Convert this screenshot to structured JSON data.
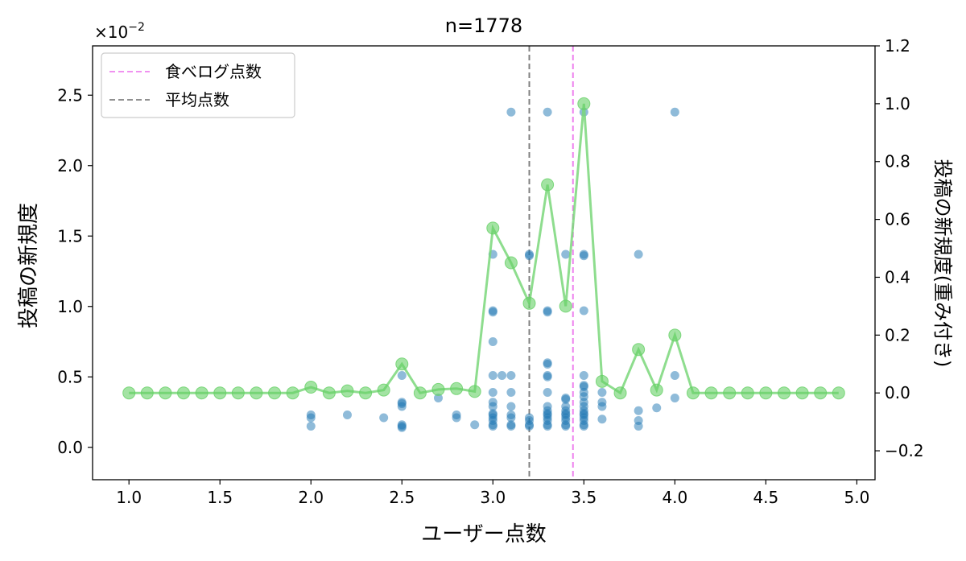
{
  "chart_data": {
    "type": "scatter",
    "title": "n=1778",
    "xlabel": "ユーザー点数",
    "ylabel_left": "投稿の新規度",
    "ylabel_right": "投稿の新規度(重み付き)",
    "left_axis_multiplier": "×10",
    "left_axis_multiplier_exp": "−2",
    "xlim": [
      0.8,
      5.1
    ],
    "ylim_left": [
      -0.0023,
      0.0285
    ],
    "ylim_right": [
      -0.3,
      1.2
    ],
    "x_ticks": [
      1.0,
      1.5,
      2.0,
      2.5,
      3.0,
      3.5,
      4.0,
      4.5,
      5.0
    ],
    "x_tick_labels": [
      "1.0",
      "1.5",
      "2.0",
      "2.5",
      "3.0",
      "3.5",
      "4.0",
      "4.5",
      "5.0"
    ],
    "y_left_ticks": [
      0.0,
      0.005,
      0.01,
      0.015,
      0.02,
      0.025
    ],
    "y_left_tick_labels": [
      "0.0",
      "0.5",
      "1.0",
      "1.5",
      "2.0",
      "2.5"
    ],
    "y_right_ticks": [
      -0.2,
      0.0,
      0.2,
      0.4,
      0.6,
      0.8,
      1.0,
      1.2
    ],
    "y_right_tick_labels": [
      "−0.2",
      "0.0",
      "0.2",
      "0.4",
      "0.6",
      "0.8",
      "1.0",
      "1.2"
    ],
    "legend": {
      "position": "upper-left",
      "entries": [
        {
          "label": "食べログ点数",
          "color": "#ee82ee",
          "style": "dashed"
        },
        {
          "label": "平均点数",
          "color": "#808080",
          "style": "dashed"
        }
      ]
    },
    "vlines": [
      {
        "name": "食べログ点数",
        "x": 3.44,
        "color": "#ee82ee"
      },
      {
        "name": "平均点数",
        "x": 3.2,
        "color": "#808080"
      }
    ],
    "colors": {
      "scatter": "#1f77b4",
      "line": "#7ad77a",
      "line_marker": "#66d166",
      "axes": "#000000"
    },
    "series": [
      {
        "axis": "left",
        "kind": "scatter",
        "points": [
          [
            2.0,
            0.0023
          ],
          [
            2.0,
            0.0021
          ],
          [
            2.0,
            0.0015
          ],
          [
            2.2,
            0.0023
          ],
          [
            2.4,
            0.0021
          ],
          [
            2.5,
            0.0051
          ],
          [
            2.5,
            0.0029
          ],
          [
            2.5,
            0.0032
          ],
          [
            2.5,
            0.0031
          ],
          [
            2.5,
            0.0016
          ],
          [
            2.5,
            0.0015
          ],
          [
            2.5,
            0.0014
          ],
          [
            2.7,
            0.0035
          ],
          [
            2.8,
            0.0023
          ],
          [
            2.8,
            0.0021
          ],
          [
            2.9,
            0.0016
          ],
          [
            3.0,
            0.0137
          ],
          [
            3.0,
            0.0097
          ],
          [
            3.0,
            0.0096
          ],
          [
            3.0,
            0.0075
          ],
          [
            3.0,
            0.0051
          ],
          [
            3.0,
            0.0039
          ],
          [
            3.0,
            0.0032
          ],
          [
            3.0,
            0.0029
          ],
          [
            3.0,
            0.0024
          ],
          [
            3.0,
            0.0023
          ],
          [
            3.0,
            0.0021
          ],
          [
            3.0,
            0.0019
          ],
          [
            3.0,
            0.0016
          ],
          [
            3.0,
            0.0015
          ],
          [
            3.05,
            0.0051
          ],
          [
            3.1,
            0.0238
          ],
          [
            3.1,
            0.0051
          ],
          [
            3.1,
            0.0039
          ],
          [
            3.1,
            0.0029
          ],
          [
            3.1,
            0.0023
          ],
          [
            3.1,
            0.0021
          ],
          [
            3.1,
            0.0016
          ],
          [
            3.1,
            0.0015
          ],
          [
            3.2,
            0.0137
          ],
          [
            3.2,
            0.0136
          ],
          [
            3.2,
            0.0021
          ],
          [
            3.2,
            0.0019
          ],
          [
            3.2,
            0.0016
          ],
          [
            3.2,
            0.0015
          ],
          [
            3.3,
            0.0238
          ],
          [
            3.3,
            0.0097
          ],
          [
            3.3,
            0.0096
          ],
          [
            3.3,
            0.006
          ],
          [
            3.3,
            0.0059
          ],
          [
            3.3,
            0.0051
          ],
          [
            3.3,
            0.005
          ],
          [
            3.3,
            0.0039
          ],
          [
            3.3,
            0.0029
          ],
          [
            3.3,
            0.0026
          ],
          [
            3.3,
            0.0024
          ],
          [
            3.3,
            0.0023
          ],
          [
            3.3,
            0.0021
          ],
          [
            3.3,
            0.0019
          ],
          [
            3.3,
            0.0016
          ],
          [
            3.3,
            0.0015
          ],
          [
            3.4,
            0.0137
          ],
          [
            3.4,
            0.0035
          ],
          [
            3.4,
            0.0034
          ],
          [
            3.4,
            0.0029
          ],
          [
            3.4,
            0.0026
          ],
          [
            3.4,
            0.0024
          ],
          [
            3.4,
            0.0023
          ],
          [
            3.4,
            0.0021
          ],
          [
            3.4,
            0.0019
          ],
          [
            3.4,
            0.0016
          ],
          [
            3.4,
            0.0015
          ],
          [
            3.5,
            0.0238
          ],
          [
            3.5,
            0.0137
          ],
          [
            3.5,
            0.0136
          ],
          [
            3.5,
            0.0097
          ],
          [
            3.5,
            0.0051
          ],
          [
            3.5,
            0.0044
          ],
          [
            3.5,
            0.0043
          ],
          [
            3.5,
            0.0039
          ],
          [
            3.5,
            0.0036
          ],
          [
            3.5,
            0.0032
          ],
          [
            3.5,
            0.0029
          ],
          [
            3.5,
            0.0026
          ],
          [
            3.5,
            0.0024
          ],
          [
            3.5,
            0.0023
          ],
          [
            3.5,
            0.0021
          ],
          [
            3.5,
            0.0019
          ],
          [
            3.5,
            0.0016
          ],
          [
            3.5,
            0.0015
          ],
          [
            3.6,
            0.0039
          ],
          [
            3.6,
            0.0032
          ],
          [
            3.6,
            0.0029
          ],
          [
            3.6,
            0.002
          ],
          [
            3.8,
            0.0137
          ],
          [
            3.8,
            0.0026
          ],
          [
            3.8,
            0.0019
          ],
          [
            3.8,
            0.0015
          ],
          [
            3.9,
            0.0028
          ],
          [
            4.0,
            0.0238
          ],
          [
            4.0,
            0.0051
          ],
          [
            4.0,
            0.0035
          ]
        ]
      },
      {
        "axis": "right",
        "kind": "line",
        "x": [
          1.0,
          1.1,
          1.2,
          1.3,
          1.4,
          1.5,
          1.6,
          1.7,
          1.8,
          1.9,
          2.0,
          2.1,
          2.2,
          2.3,
          2.4,
          2.5,
          2.6,
          2.7,
          2.8,
          2.9,
          3.0,
          3.1,
          3.2,
          3.3,
          3.4,
          3.5,
          3.6,
          3.7,
          3.8,
          3.9,
          4.0,
          4.1,
          4.2,
          4.3,
          4.4,
          4.5,
          4.6,
          4.7,
          4.8,
          4.9
        ],
        "values": [
          0.0,
          0.0,
          0.0,
          0.0,
          0.0,
          0.0,
          0.0,
          0.0,
          0.0,
          0.0,
          0.02,
          0.0,
          0.007,
          0.0,
          0.01,
          0.1,
          0.0,
          0.012,
          0.015,
          0.005,
          0.57,
          0.45,
          0.31,
          0.72,
          0.3,
          1.0,
          0.04,
          0.0,
          0.15,
          0.01,
          0.2,
          0.0,
          0.0,
          0.0,
          0.0,
          0.0,
          0.0,
          0.0,
          0.0,
          0.0
        ]
      }
    ]
  }
}
